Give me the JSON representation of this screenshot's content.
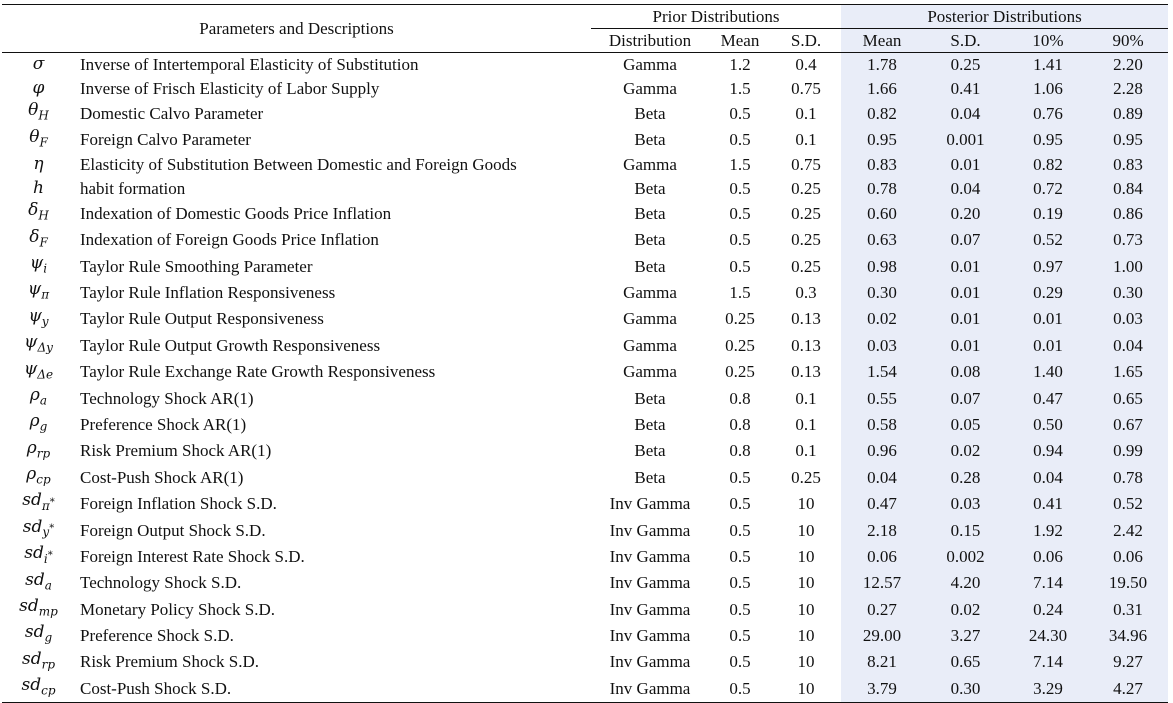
{
  "header": {
    "params_label": "Parameters and Descriptions",
    "prior_group": "Prior Distributions",
    "posterior_group": "Posterior Distributions",
    "prior_cols": [
      "Distribution",
      "Mean",
      "S.D."
    ],
    "posterior_cols": [
      "Mean",
      "S.D.",
      "10%",
      "90%"
    ]
  },
  "rows": [
    {
      "base": "σ",
      "sub": "",
      "sup": "",
      "desc": "Inverse of Intertemporal Elasticity of Substitution",
      "dist": "Gamma",
      "pmean": "1.2",
      "psd": "0.4",
      "mean": "1.78",
      "sd": "0.25",
      "p10": "1.41",
      "p90": "2.20"
    },
    {
      "base": "φ",
      "sub": "",
      "sup": "",
      "desc": "Inverse of Frisch Elasticity of Labor Supply",
      "dist": "Gamma",
      "pmean": "1.5",
      "psd": "0.75",
      "mean": "1.66",
      "sd": "0.41",
      "p10": "1.06",
      "p90": "2.28"
    },
    {
      "base": "θ",
      "sub": "H",
      "sup": "",
      "desc": "Domestic Calvo Parameter",
      "dist": "Beta",
      "pmean": "0.5",
      "psd": "0.1",
      "mean": "0.82",
      "sd": "0.04",
      "p10": "0.76",
      "p90": "0.89"
    },
    {
      "base": "θ",
      "sub": "F",
      "sup": "",
      "desc": "Foreign Calvo Parameter",
      "dist": "Beta",
      "pmean": "0.5",
      "psd": "0.1",
      "mean": "0.95",
      "sd": "0.001",
      "p10": "0.95",
      "p90": "0.95"
    },
    {
      "base": "η",
      "sub": "",
      "sup": "",
      "desc": "Elasticity of Substitution Between Domestic and Foreign Goods",
      "dist": "Gamma",
      "pmean": "1.5",
      "psd": "0.75",
      "mean": "0.83",
      "sd": "0.01",
      "p10": "0.82",
      "p90": "0.83"
    },
    {
      "base": "h",
      "sub": "",
      "sup": "",
      "desc": "habit formation",
      "dist": "Beta",
      "pmean": "0.5",
      "psd": "0.25",
      "mean": "0.78",
      "sd": "0.04",
      "p10": "0.72",
      "p90": "0.84"
    },
    {
      "base": "δ",
      "sub": "H",
      "sup": "",
      "desc": "Indexation of Domestic Goods Price Inflation",
      "dist": "Beta",
      "pmean": "0.5",
      "psd": "0.25",
      "mean": "0.60",
      "sd": "0.20",
      "p10": "0.19",
      "p90": "0.86"
    },
    {
      "base": "δ",
      "sub": "F",
      "sup": "",
      "desc": "Indexation of Foreign Goods Price Inflation",
      "dist": "Beta",
      "pmean": "0.5",
      "psd": "0.25",
      "mean": "0.63",
      "sd": "0.07",
      "p10": "0.52",
      "p90": "0.73"
    },
    {
      "base": "ψ",
      "sub": "i",
      "sup": "",
      "desc": "Taylor Rule Smoothing Parameter",
      "dist": "Beta",
      "pmean": "0.5",
      "psd": "0.25",
      "mean": "0.98",
      "sd": "0.01",
      "p10": "0.97",
      "p90": "1.00"
    },
    {
      "base": "ψ",
      "sub": "π",
      "sup": "",
      "desc": "Taylor Rule Inflation Responsiveness",
      "dist": "Gamma",
      "pmean": "1.5",
      "psd": "0.3",
      "mean": "0.30",
      "sd": "0.01",
      "p10": "0.29",
      "p90": "0.30"
    },
    {
      "base": "ψ",
      "sub": "y",
      "sup": "",
      "desc": "Taylor Rule Output Responsiveness",
      "dist": "Gamma",
      "pmean": "0.25",
      "psd": "0.13",
      "mean": "0.02",
      "sd": "0.01",
      "p10": "0.01",
      "p90": "0.03"
    },
    {
      "base": "ψ",
      "sub": "Δy",
      "sup": "",
      "desc": "Taylor Rule Output Growth Responsiveness",
      "dist": "Gamma",
      "pmean": "0.25",
      "psd": "0.13",
      "mean": "0.03",
      "sd": "0.01",
      "p10": "0.01",
      "p90": "0.04"
    },
    {
      "base": "ψ",
      "sub": "Δe",
      "sup": "",
      "desc": "Taylor Rule Exchange Rate Growth Responsiveness",
      "dist": "Gamma",
      "pmean": "0.25",
      "psd": "0.13",
      "mean": "1.54",
      "sd": "0.08",
      "p10": "1.40",
      "p90": "1.65"
    },
    {
      "base": "ρ",
      "sub": "a",
      "sup": "",
      "desc": "Technology Shock AR(1)",
      "dist": "Beta",
      "pmean": "0.8",
      "psd": "0.1",
      "mean": "0.55",
      "sd": "0.07",
      "p10": "0.47",
      "p90": "0.65"
    },
    {
      "base": "ρ",
      "sub": "g",
      "sup": "",
      "desc": "Preference Shock AR(1)",
      "dist": "Beta",
      "pmean": "0.8",
      "psd": "0.1",
      "mean": "0.58",
      "sd": "0.05",
      "p10": "0.50",
      "p90": "0.67"
    },
    {
      "base": "ρ",
      "sub": "rp",
      "sup": "",
      "desc": "Risk Premium Shock AR(1)",
      "dist": "Beta",
      "pmean": "0.8",
      "psd": "0.1",
      "mean": "0.96",
      "sd": "0.02",
      "p10": "0.94",
      "p90": "0.99"
    },
    {
      "base": "ρ",
      "sub": "cp",
      "sup": "",
      "desc": "Cost-Push Shock AR(1)",
      "dist": "Beta",
      "pmean": "0.5",
      "psd": "0.25",
      "mean": "0.04",
      "sd": "0.28",
      "p10": "0.04",
      "p90": "0.78"
    },
    {
      "base": "sd",
      "sub": "π",
      "sup": "*",
      "desc": "Foreign Inflation Shock S.D.",
      "dist": "Inv Gamma",
      "pmean": "0.5",
      "psd": "10",
      "mean": "0.47",
      "sd": "0.03",
      "p10": "0.41",
      "p90": "0.52"
    },
    {
      "base": "sd",
      "sub": "y",
      "sup": "*",
      "desc": "Foreign Output Shock S.D.",
      "dist": "Inv Gamma",
      "pmean": "0.5",
      "psd": "10",
      "mean": "2.18",
      "sd": "0.15",
      "p10": "1.92",
      "p90": "2.42"
    },
    {
      "base": "sd",
      "sub": "i",
      "sup": "*",
      "desc": "Foreign Interest Rate Shock S.D.",
      "dist": "Inv Gamma",
      "pmean": "0.5",
      "psd": "10",
      "mean": "0.06",
      "sd": "0.002",
      "p10": "0.06",
      "p90": "0.06"
    },
    {
      "base": "sd",
      "sub": "a",
      "sup": "",
      "desc": "Technology Shock S.D.",
      "dist": "Inv Gamma",
      "pmean": "0.5",
      "psd": "10",
      "mean": "12.57",
      "sd": "4.20",
      "p10": "7.14",
      "p90": "19.50"
    },
    {
      "base": "sd",
      "sub": "mp",
      "sup": "",
      "desc": "Monetary Policy Shock S.D.",
      "dist": "Inv Gamma",
      "pmean": "0.5",
      "psd": "10",
      "mean": "0.27",
      "sd": "0.02",
      "p10": "0.24",
      "p90": "0.31"
    },
    {
      "base": "sd",
      "sub": "g",
      "sup": "",
      "desc": "Preference Shock S.D.",
      "dist": "Inv Gamma",
      "pmean": "0.5",
      "psd": "10",
      "mean": "29.00",
      "sd": "3.27",
      "p10": "24.30",
      "p90": "34.96"
    },
    {
      "base": "sd",
      "sub": "rp",
      "sup": "",
      "desc": "Risk Premium Shock S.D.",
      "dist": "Inv Gamma",
      "pmean": "0.5",
      "psd": "10",
      "mean": "8.21",
      "sd": "0.65",
      "p10": "7.14",
      "p90": "9.27"
    },
    {
      "base": "sd",
      "sub": "cp",
      "sup": "",
      "desc": "Cost-Push Shock S.D.",
      "dist": "Inv Gamma",
      "pmean": "0.5",
      "psd": "10",
      "mean": "3.79",
      "sd": "0.30",
      "p10": "3.29",
      "p90": "4.27"
    }
  ]
}
